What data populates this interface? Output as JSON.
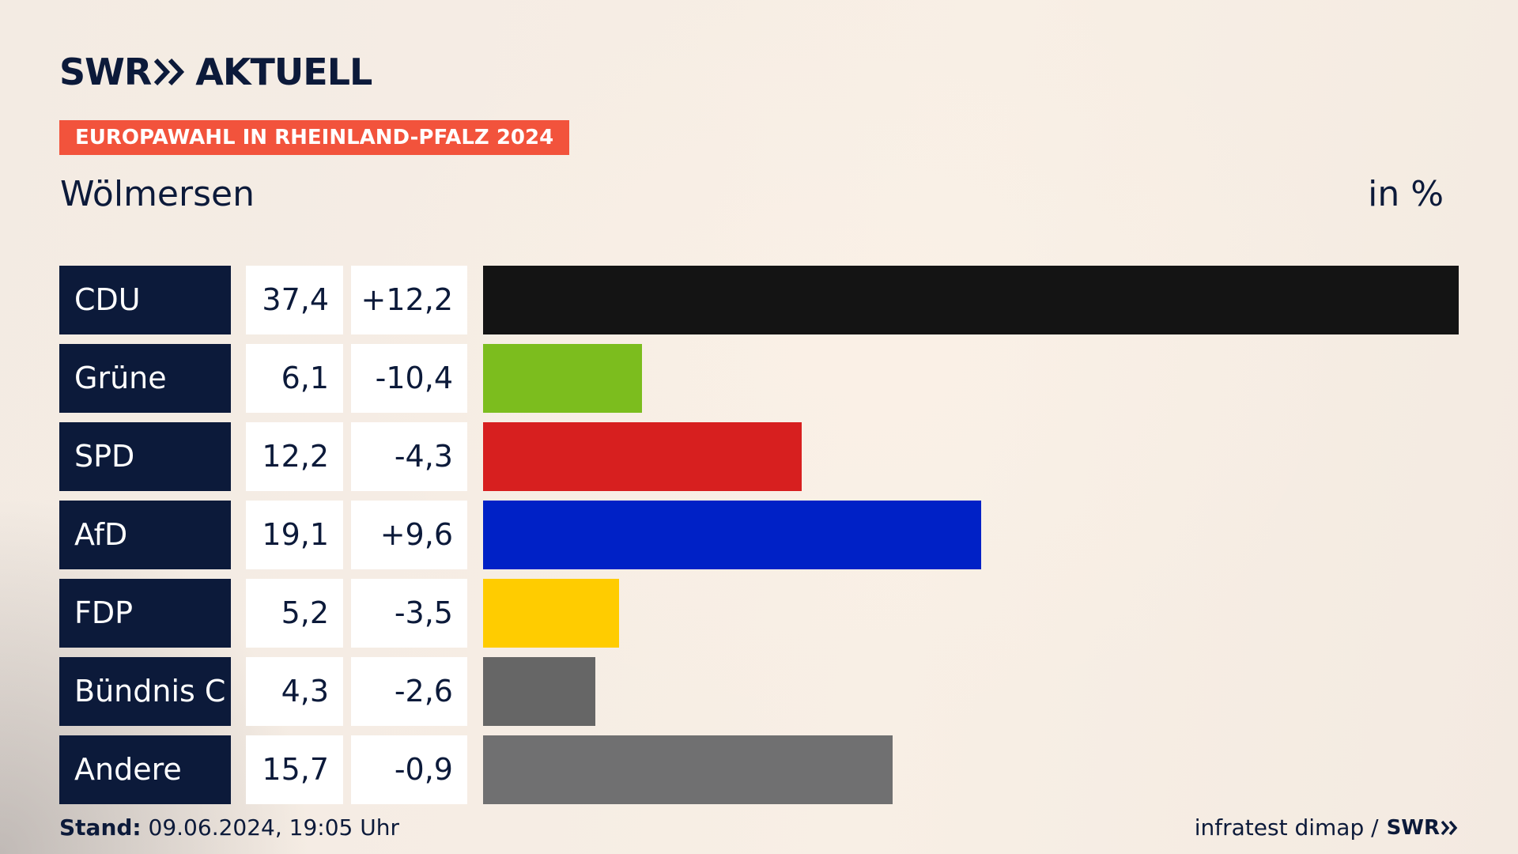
{
  "brand": {
    "logo_left": "SWR",
    "logo_right": "AKTUELL"
  },
  "header": {
    "badge": "EUROPAWAHL IN RHEINLAND-PFALZ 2024",
    "place": "Wölmersen",
    "unit": "in %"
  },
  "chart_data": {
    "type": "bar",
    "categories": [
      "CDU",
      "Grüne",
      "SPD",
      "AfD",
      "FDP",
      "Bündnis C",
      "Andere"
    ],
    "values": [
      37.4,
      6.1,
      12.2,
      19.1,
      5.2,
      4.3,
      15.7
    ],
    "value_labels": [
      "37,4",
      "6,1",
      "12,2",
      "19,1",
      "5,2",
      "4,3",
      "15,7"
    ],
    "diff_labels": [
      "+12,2",
      "-10,4",
      "-4,3",
      "+9,6",
      "-3,5",
      "-2,6",
      "-0,9"
    ],
    "colors": [
      "#141414",
      "#7cbd1e",
      "#d71f1f",
      "#0021c6",
      "#ffcc00",
      "#666666",
      "#707071"
    ]
  },
  "footer": {
    "stand_label": "Stand:",
    "stand_value": "09.06.2024, 19:05 Uhr",
    "source": "infratest dimap /",
    "source_brand": "SWR"
  }
}
